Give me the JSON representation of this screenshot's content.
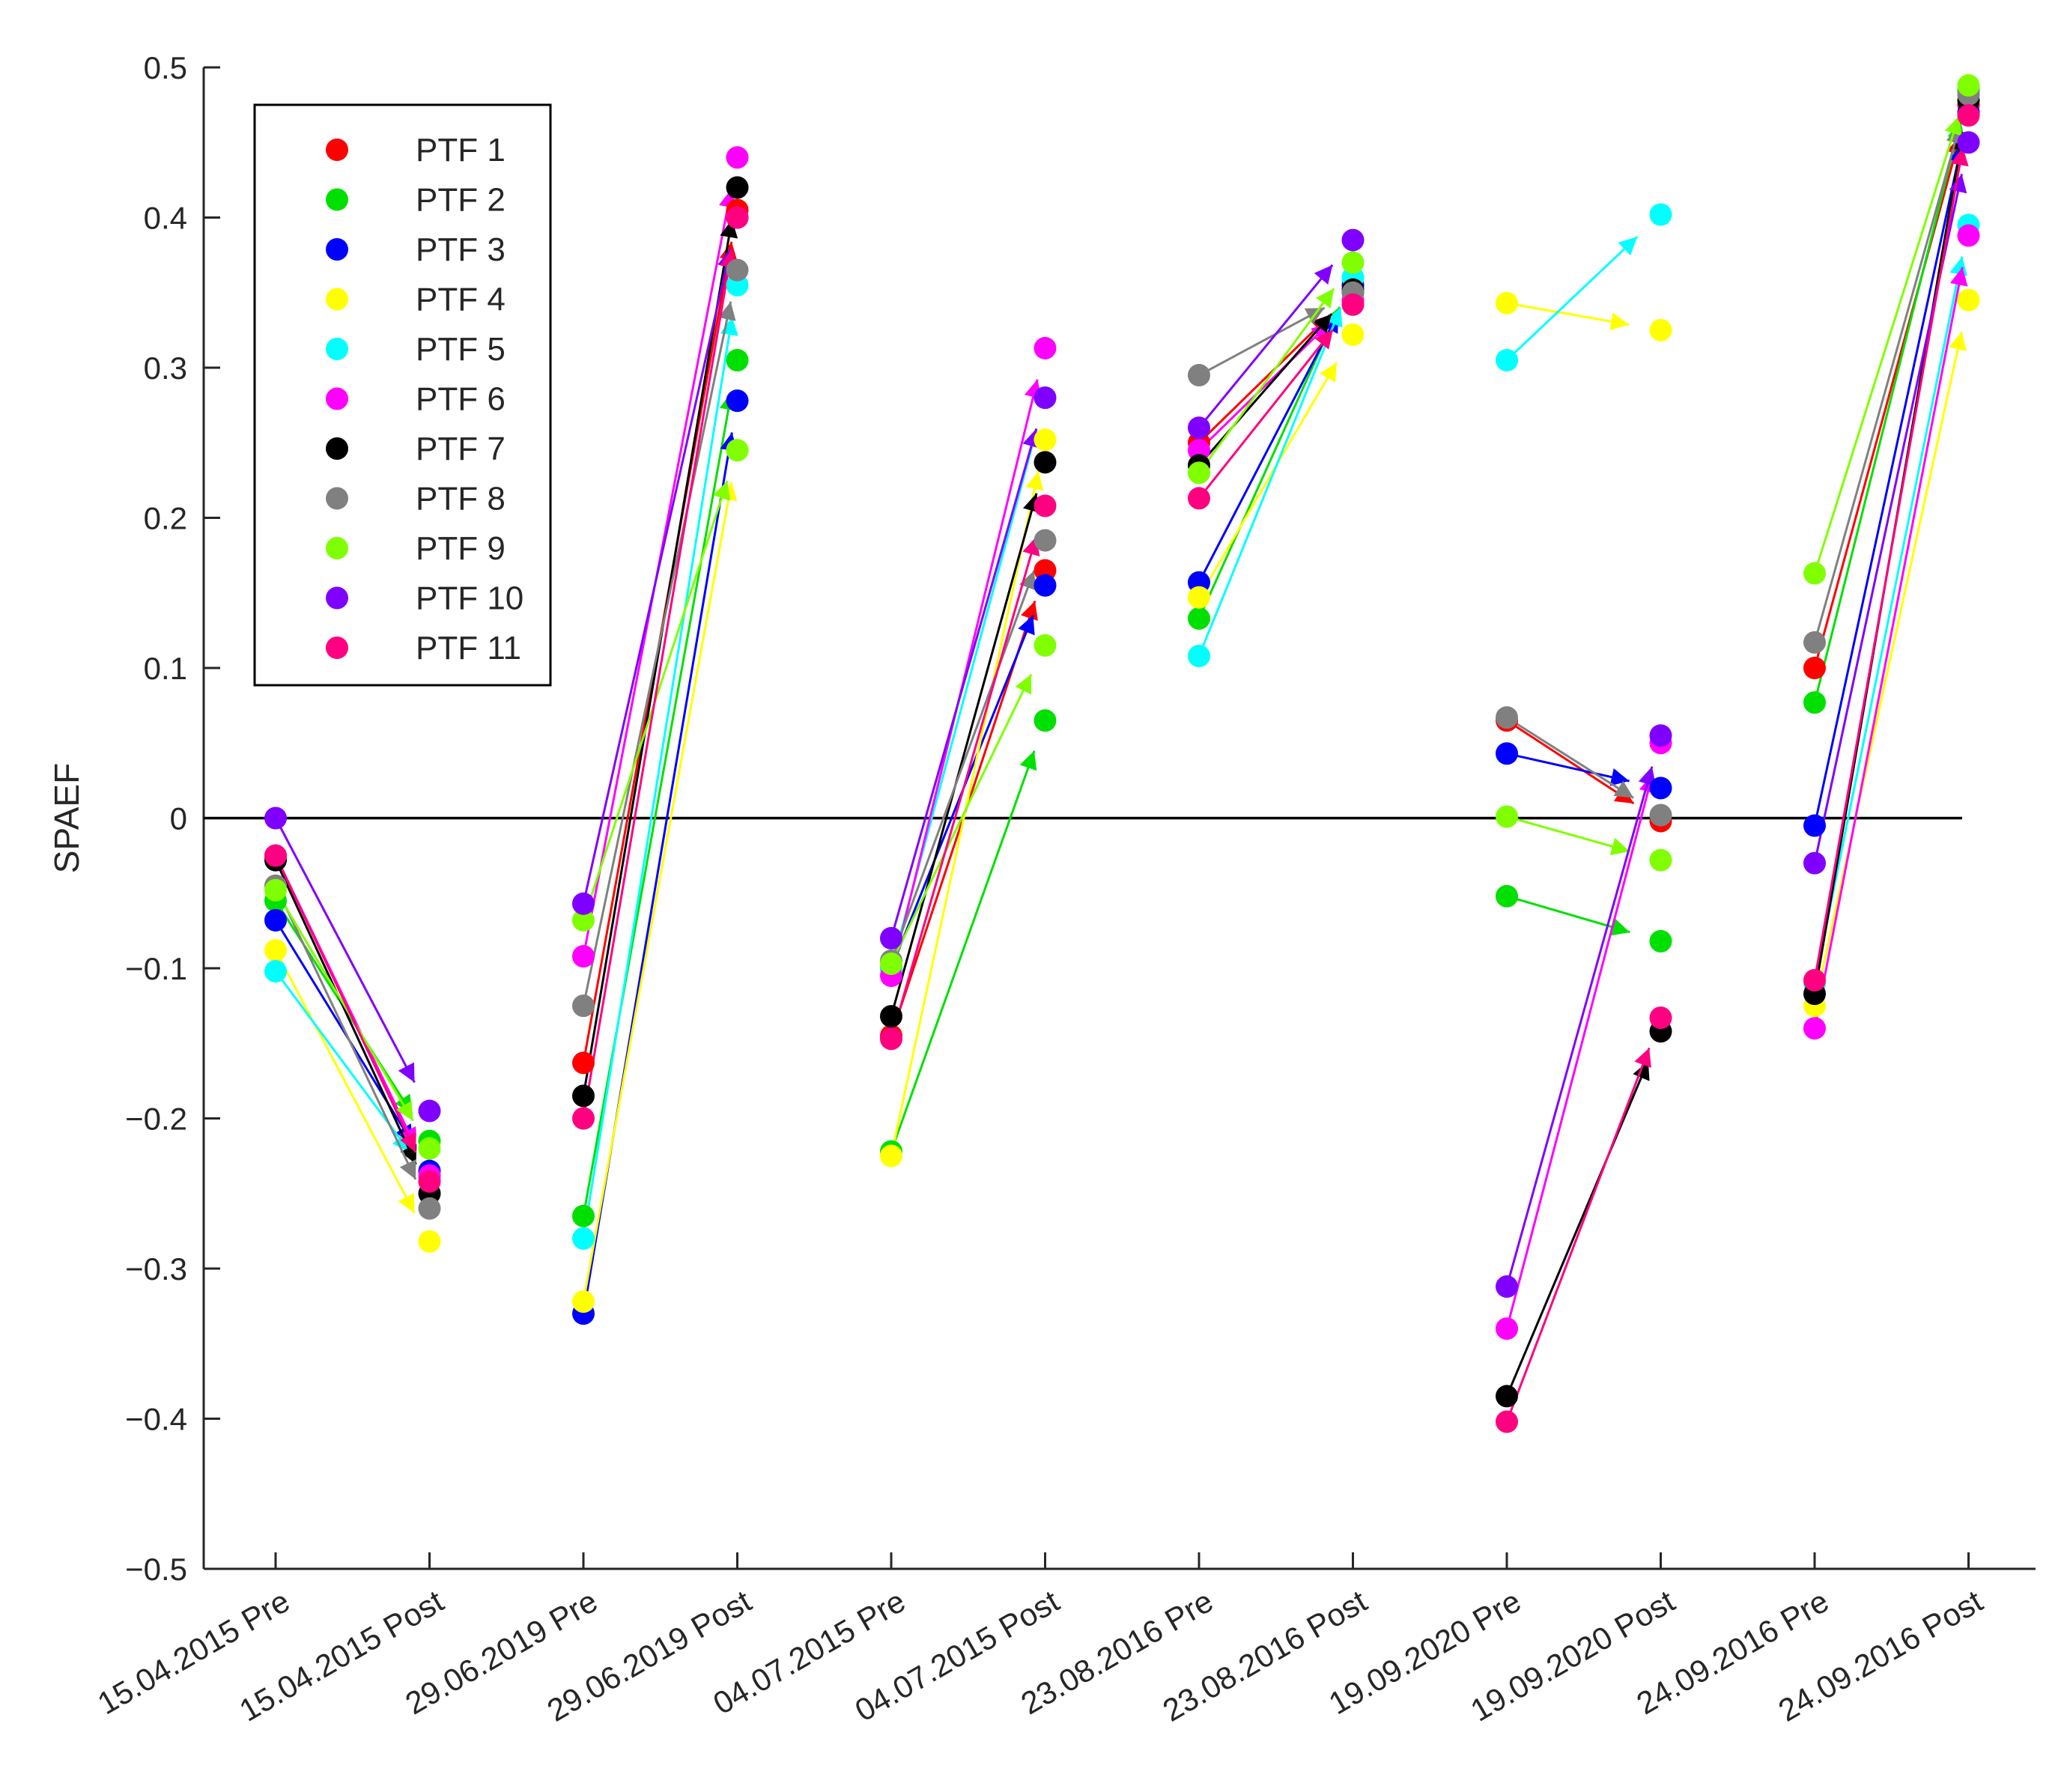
{
  "chart_data": {
    "type": "scatter",
    "title": "",
    "xlabel": "",
    "ylabel": "SPAEF",
    "ylim": [
      -0.5,
      0.5
    ],
    "yticks": [
      -0.5,
      -0.4,
      -0.3,
      -0.2,
      -0.1,
      0,
      0.1,
      0.2,
      0.3,
      0.4,
      0.5
    ],
    "ytick_labels": [
      "−0.5",
      "−0.4",
      "−0.3",
      "−0.2",
      "−0.1",
      "0",
      "0.1",
      "0.2",
      "0.3",
      "0.4",
      "0.5"
    ],
    "categories": [
      "15.04.2015 Pre",
      "15.04.2015 Post",
      "29.06.2019 Pre",
      "29.06.2019 Post",
      "04.07.2015 Pre",
      "04.07.2015 Post",
      "23.08.2016 Pre",
      "23.08.2016 Post",
      "19.09.2020 Pre",
      "19.09.2020 Post",
      "24.09.2016 Pre",
      "24.09.2016 Post"
    ],
    "reference_line": 0,
    "legend_position": "top-left",
    "events": [
      "15.04.2015",
      "29.06.2019",
      "04.07.2015",
      "23.08.2016",
      "19.09.2020",
      "24.09.2016"
    ],
    "series": [
      {
        "name": "PTF 1",
        "color": "#ff0000",
        "values": [
          -0.025,
          -0.24,
          -0.163,
          0.405,
          -0.145,
          0.165,
          0.25,
          0.35,
          0.065,
          -0.002,
          0.1,
          0.475
        ]
      },
      {
        "name": "PTF 2",
        "color": "#00e000",
        "values": [
          -0.055,
          -0.215,
          -0.265,
          0.305,
          -0.222,
          0.065,
          0.133,
          0.36,
          -0.052,
          -0.082,
          0.077,
          0.485
        ]
      },
      {
        "name": "PTF 3",
        "color": "#0000ff",
        "values": [
          -0.068,
          -0.235,
          -0.33,
          0.278,
          -0.1,
          0.155,
          0.157,
          0.355,
          0.043,
          0.02,
          -0.005,
          0.47
        ]
      },
      {
        "name": "PTF 4",
        "color": "#ffff00",
        "values": [
          -0.088,
          -0.282,
          -0.322,
          0.245,
          -0.225,
          0.252,
          0.147,
          0.322,
          0.343,
          0.325,
          -0.125,
          0.345
        ]
      },
      {
        "name": "PTF 5",
        "color": "#00ffff",
        "values": [
          -0.102,
          -0.24,
          -0.28,
          0.355,
          -0.1,
          0.28,
          0.108,
          0.36,
          0.305,
          0.402,
          -0.11,
          0.395
        ]
      },
      {
        "name": "PTF 6",
        "color": "#ff00ff",
        "values": [
          -0.025,
          -0.238,
          -0.092,
          0.44,
          -0.105,
          0.313,
          0.245,
          0.345,
          -0.34,
          0.05,
          -0.14,
          0.388
        ]
      },
      {
        "name": "PTF 7",
        "color": "#000000",
        "values": [
          -0.028,
          -0.25,
          -0.185,
          0.42,
          -0.132,
          0.237,
          0.235,
          0.352,
          -0.385,
          -0.142,
          -0.117,
          0.478
        ]
      },
      {
        "name": "PTF 8",
        "color": "#808080",
        "values": [
          -0.045,
          -0.26,
          -0.125,
          0.365,
          -0.095,
          0.185,
          0.295,
          0.35,
          0.067,
          0.002,
          0.117,
          0.482
        ]
      },
      {
        "name": "PTF 9",
        "color": "#80ff00",
        "values": [
          -0.048,
          -0.22,
          -0.068,
          0.245,
          -0.097,
          0.115,
          0.23,
          0.37,
          0.001,
          -0.028,
          0.163,
          0.488
        ]
      },
      {
        "name": "PTF 10",
        "color": "#8000ff",
        "values": [
          0.0,
          -0.195,
          -0.057,
          0.4,
          -0.08,
          0.28,
          0.26,
          0.385,
          -0.312,
          0.055,
          -0.03,
          0.45
        ]
      },
      {
        "name": "PTF 11",
        "color": "#ff0080",
        "values": [
          -0.025,
          -0.242,
          -0.2,
          0.4,
          -0.147,
          0.208,
          0.213,
          0.342,
          -0.402,
          -0.133,
          -0.108,
          0.468
        ]
      }
    ]
  }
}
